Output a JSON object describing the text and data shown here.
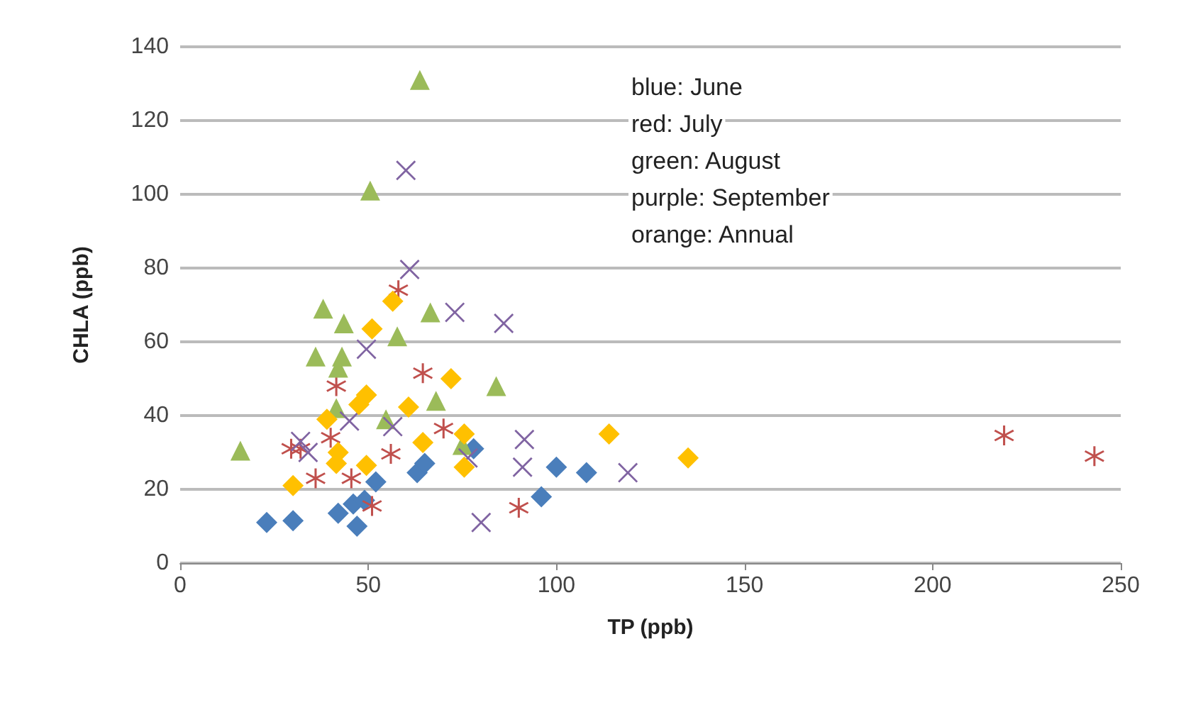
{
  "chart_data": {
    "type": "scatter",
    "xlabel": "TP (ppb)",
    "ylabel": "CHLA (ppb)",
    "xlim": [
      0,
      250
    ],
    "xticks": [
      0,
      50,
      100,
      150,
      200,
      250
    ],
    "ylim": [
      0,
      140
    ],
    "yticks": [
      0,
      20,
      40,
      60,
      80,
      100,
      120,
      140
    ],
    "grid": "y",
    "annotations": [
      "blue: June",
      "red: July",
      "green: August",
      "purple: September",
      "orange: Annual"
    ],
    "series": [
      {
        "color": "#4a7ebb",
        "marker": "diamond",
        "x": [
          23,
          30,
          42,
          46,
          47,
          52,
          63,
          65,
          78,
          100,
          108,
          96,
          49
        ],
        "values": [
          11,
          11.5,
          13.5,
          16,
          10,
          22,
          24.5,
          27,
          31,
          26,
          24.5,
          18,
          17
        ]
      },
      {
        "color": "#c0504d",
        "marker": "star",
        "x": [
          58,
          64.5,
          41.5,
          29.5,
          70,
          56,
          36,
          45.5,
          51,
          90,
          40,
          32,
          219,
          243
        ],
        "values": [
          74,
          51.5,
          48,
          31,
          36.5,
          29.6,
          23,
          23,
          15.5,
          15,
          34,
          31,
          34.6,
          29
        ]
      },
      {
        "color": "#9bbb59",
        "marker": "triangle",
        "x": [
          63.7,
          50.5,
          38,
          43.5,
          66.5,
          57.7,
          36,
          43,
          42,
          68,
          84,
          54.7,
          41.5,
          16,
          75
        ],
        "values": [
          131,
          101,
          69,
          65,
          68,
          61.5,
          56,
          56,
          53,
          44,
          48,
          39,
          42,
          30.5,
          32
        ]
      },
      {
        "color": "#8064a2",
        "marker": "cross",
        "x": [
          60,
          61,
          73,
          86,
          49.5,
          45,
          34,
          56.5,
          76.5,
          80,
          91.5,
          91,
          119,
          32
        ],
        "values": [
          106.5,
          79.6,
          68,
          65,
          58,
          38.5,
          30,
          37,
          28.5,
          11,
          33.5,
          26,
          24.5,
          33
        ]
      },
      {
        "color": "#ffc000",
        "marker": "diamond",
        "x": [
          56.5,
          51,
          72,
          49.5,
          47.5,
          60.7,
          39,
          42,
          41.5,
          49.5,
          64.5,
          75.5,
          75.5,
          30,
          114,
          135
        ],
        "values": [
          71,
          63.5,
          50,
          45.6,
          43,
          42.3,
          39,
          30,
          27,
          26.5,
          32.7,
          35,
          26,
          21,
          35,
          28.5
        ]
      }
    ]
  }
}
